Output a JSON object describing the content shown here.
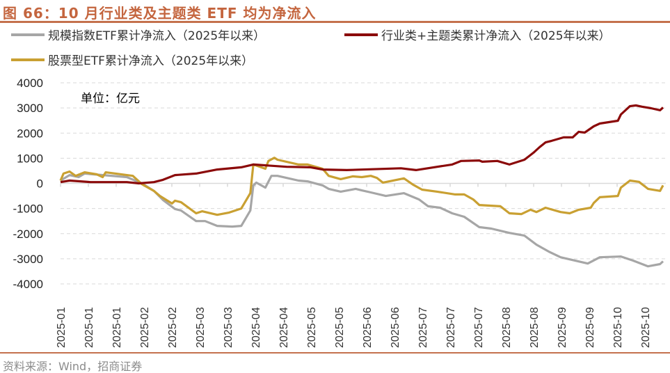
{
  "title": "图 66：10 月行业类及主题类 ETF 均为净流入",
  "source": "资料来源：Wind，招商证券",
  "chart_data": {
    "type": "line",
    "title": "图 66：10 月行业类及主题类 ETF 均为净流入",
    "unit_label": "单位：亿元",
    "xlabel": "",
    "ylabel": "",
    "ylim": [
      -4000,
      4000
    ],
    "yticks": [
      4000,
      3000,
      2000,
      1000,
      0,
      -1000,
      -2000,
      -3000,
      -4000
    ],
    "xlim": [
      0,
      200
    ],
    "x_unit": "trading-day index (2025)",
    "xtick_labels": [
      "2025-01",
      "2025-01",
      "2025-01",
      "2025-02",
      "2025-02",
      "2025-03",
      "2025-03",
      "2025-04",
      "2025-04",
      "2025-05",
      "2025-05",
      "2025-06",
      "2025-06",
      "2025-07",
      "2025-07",
      "2025-07",
      "2025-08",
      "2025-08",
      "2025-09",
      "2025-09",
      "2025-10",
      "2025-10"
    ],
    "grid": "horizontal dashed",
    "legend_position": "top",
    "series": [
      {
        "name": "规模指数ETF累计净流入（2025年以来）",
        "color": "#a6a6a6",
        "points": [
          [
            0,
            110
          ],
          [
            3,
            330
          ],
          [
            6,
            250
          ],
          [
            8,
            390
          ],
          [
            22,
            250
          ],
          [
            27,
            0
          ],
          [
            31,
            -300
          ],
          [
            34,
            -660
          ],
          [
            38,
            -1020
          ],
          [
            40,
            -1080
          ],
          [
            45,
            -1500
          ],
          [
            48,
            -1500
          ],
          [
            52,
            -1690
          ],
          [
            57,
            -1720
          ],
          [
            60,
            -1690
          ],
          [
            63,
            -1080
          ],
          [
            64,
            -80
          ],
          [
            65,
            30
          ],
          [
            68,
            -170
          ],
          [
            70,
            300
          ],
          [
            72,
            300
          ],
          [
            79,
            110
          ],
          [
            82,
            80
          ],
          [
            87,
            -80
          ],
          [
            89,
            -220
          ],
          [
            93,
            -330
          ],
          [
            98,
            -220
          ],
          [
            100,
            -280
          ],
          [
            103,
            -360
          ],
          [
            108,
            -500
          ],
          [
            114,
            -390
          ],
          [
            119,
            -640
          ],
          [
            122,
            -910
          ],
          [
            126,
            -970
          ],
          [
            130,
            -1190
          ],
          [
            134,
            -1330
          ],
          [
            139,
            -1740
          ],
          [
            143,
            -1800
          ],
          [
            149,
            -1970
          ],
          [
            154,
            -2080
          ],
          [
            158,
            -2440
          ],
          [
            162,
            -2710
          ],
          [
            166,
            -2940
          ],
          [
            175,
            -3190
          ],
          [
            179,
            -2940
          ],
          [
            186,
            -2910
          ],
          [
            190,
            -3070
          ],
          [
            195,
            -3300
          ],
          [
            199,
            -3210
          ],
          [
            200,
            -3100
          ]
        ]
      },
      {
        "name": "行业类+主题类累计净流入（2025年以来）",
        "color": "#8b0a0a",
        "points": [
          [
            0,
            50
          ],
          [
            3,
            110
          ],
          [
            10,
            50
          ],
          [
            22,
            50
          ],
          [
            26,
            0
          ],
          [
            31,
            50
          ],
          [
            34,
            140
          ],
          [
            38,
            330
          ],
          [
            45,
            390
          ],
          [
            52,
            550
          ],
          [
            60,
            640
          ],
          [
            64,
            750
          ],
          [
            75,
            660
          ],
          [
            83,
            640
          ],
          [
            87,
            550
          ],
          [
            95,
            530
          ],
          [
            113,
            600
          ],
          [
            118,
            530
          ],
          [
            130,
            750
          ],
          [
            133,
            890
          ],
          [
            139,
            910
          ],
          [
            140,
            860
          ],
          [
            145,
            890
          ],
          [
            149,
            750
          ],
          [
            154,
            940
          ],
          [
            157,
            1220
          ],
          [
            159,
            1440
          ],
          [
            161,
            1630
          ],
          [
            163,
            1690
          ],
          [
            167,
            1830
          ],
          [
            170,
            1830
          ],
          [
            172,
            2050
          ],
          [
            174,
            2020
          ],
          [
            177,
            2270
          ],
          [
            179,
            2380
          ],
          [
            185,
            2490
          ],
          [
            186,
            2740
          ],
          [
            189,
            3070
          ],
          [
            191,
            3100
          ],
          [
            193,
            3050
          ],
          [
            196,
            2990
          ],
          [
            199,
            2910
          ],
          [
            200,
            3020
          ]
        ]
      },
      {
        "name": "股票型ETF累计净流入（2025年以来）",
        "color": "#c9a032",
        "points": [
          [
            0,
            110
          ],
          [
            1,
            390
          ],
          [
            3,
            470
          ],
          [
            5,
            300
          ],
          [
            8,
            440
          ],
          [
            12,
            360
          ],
          [
            14,
            250
          ],
          [
            15,
            440
          ],
          [
            24,
            300
          ],
          [
            27,
            -30
          ],
          [
            31,
            -300
          ],
          [
            33,
            -500
          ],
          [
            37,
            -800
          ],
          [
            38,
            -690
          ],
          [
            40,
            -750
          ],
          [
            45,
            -1190
          ],
          [
            47,
            -1110
          ],
          [
            52,
            -1250
          ],
          [
            56,
            -1160
          ],
          [
            60,
            -1000
          ],
          [
            63,
            -390
          ],
          [
            64,
            750
          ],
          [
            68,
            580
          ],
          [
            69,
            890
          ],
          [
            71,
            1020
          ],
          [
            72,
            940
          ],
          [
            79,
            750
          ],
          [
            82,
            750
          ],
          [
            87,
            580
          ],
          [
            89,
            300
          ],
          [
            93,
            170
          ],
          [
            97,
            280
          ],
          [
            100,
            250
          ],
          [
            103,
            300
          ],
          [
            105,
            220
          ],
          [
            107,
            30
          ],
          [
            114,
            200
          ],
          [
            117,
            -50
          ],
          [
            120,
            -250
          ],
          [
            125,
            -330
          ],
          [
            131,
            -440
          ],
          [
            134,
            -440
          ],
          [
            137,
            -640
          ],
          [
            139,
            -860
          ],
          [
            146,
            -910
          ],
          [
            149,
            -1190
          ],
          [
            153,
            -1220
          ],
          [
            156,
            -1050
          ],
          [
            158,
            -1140
          ],
          [
            161,
            -970
          ],
          [
            166,
            -1140
          ],
          [
            169,
            -1190
          ],
          [
            172,
            -1050
          ],
          [
            176,
            -970
          ],
          [
            177,
            -780
          ],
          [
            179,
            -550
          ],
          [
            185,
            -500
          ],
          [
            186,
            -170
          ],
          [
            189,
            110
          ],
          [
            192,
            60
          ],
          [
            195,
            -220
          ],
          [
            199,
            -300
          ],
          [
            200,
            -80
          ]
        ]
      }
    ]
  }
}
